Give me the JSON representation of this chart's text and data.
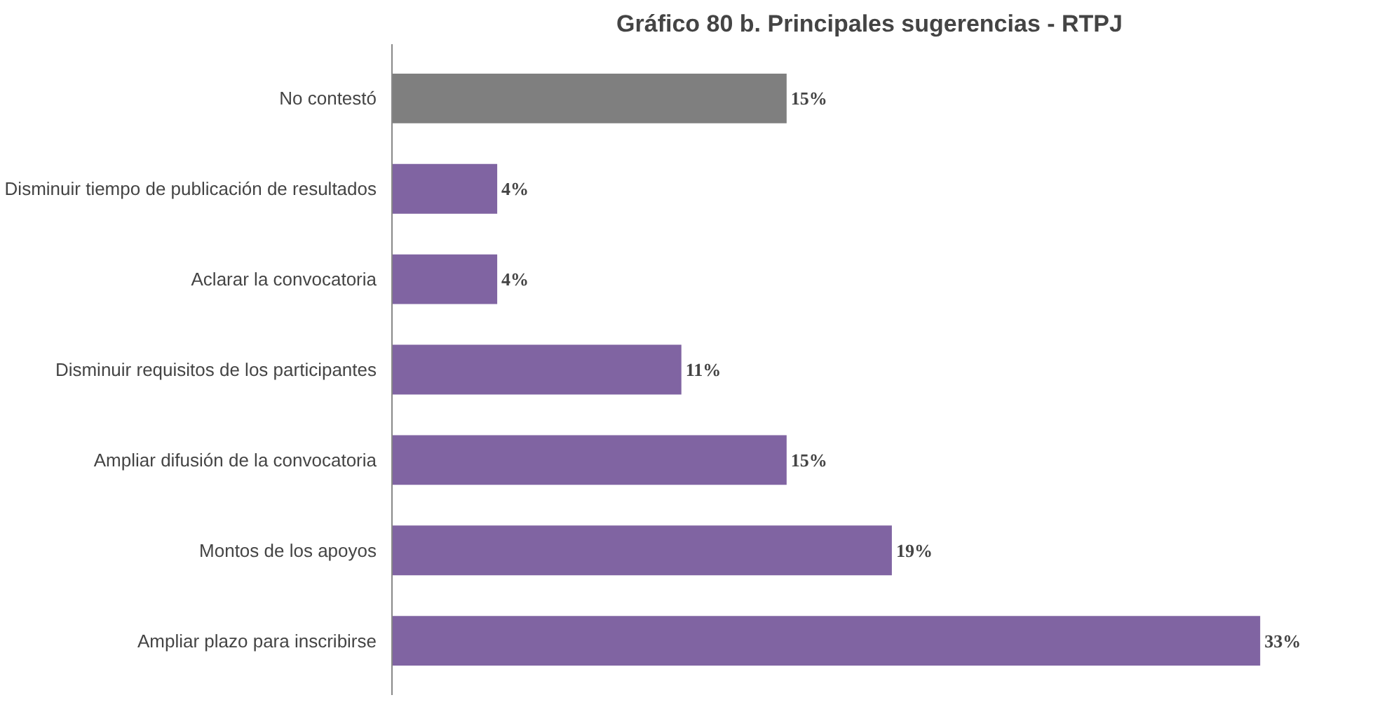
{
  "chart_data": {
    "type": "bar",
    "orientation": "horizontal",
    "title": "Gráfico 80 b. Principales sugerencias - RTPJ",
    "categories": [
      "No contestó",
      "Disminuir tiempo de publicación de resultados",
      "Aclarar la convocatoria",
      "Disminuir requisitos de los participantes",
      "Ampliar difusión de la convocatoria",
      "Montos de los apoyos",
      "Ampliar plazo para inscribirse"
    ],
    "values": [
      15,
      4,
      4,
      11,
      15,
      19,
      33
    ],
    "colors": [
      "#7f7f7f",
      "#8064a2",
      "#8064a2",
      "#8064a2",
      "#8064a2",
      "#8064a2",
      "#8064a2"
    ],
    "value_labels": [
      "15%",
      "4%",
      "4%",
      "11%",
      "15%",
      "19%",
      "33%"
    ],
    "tick_labels": "y"
  }
}
